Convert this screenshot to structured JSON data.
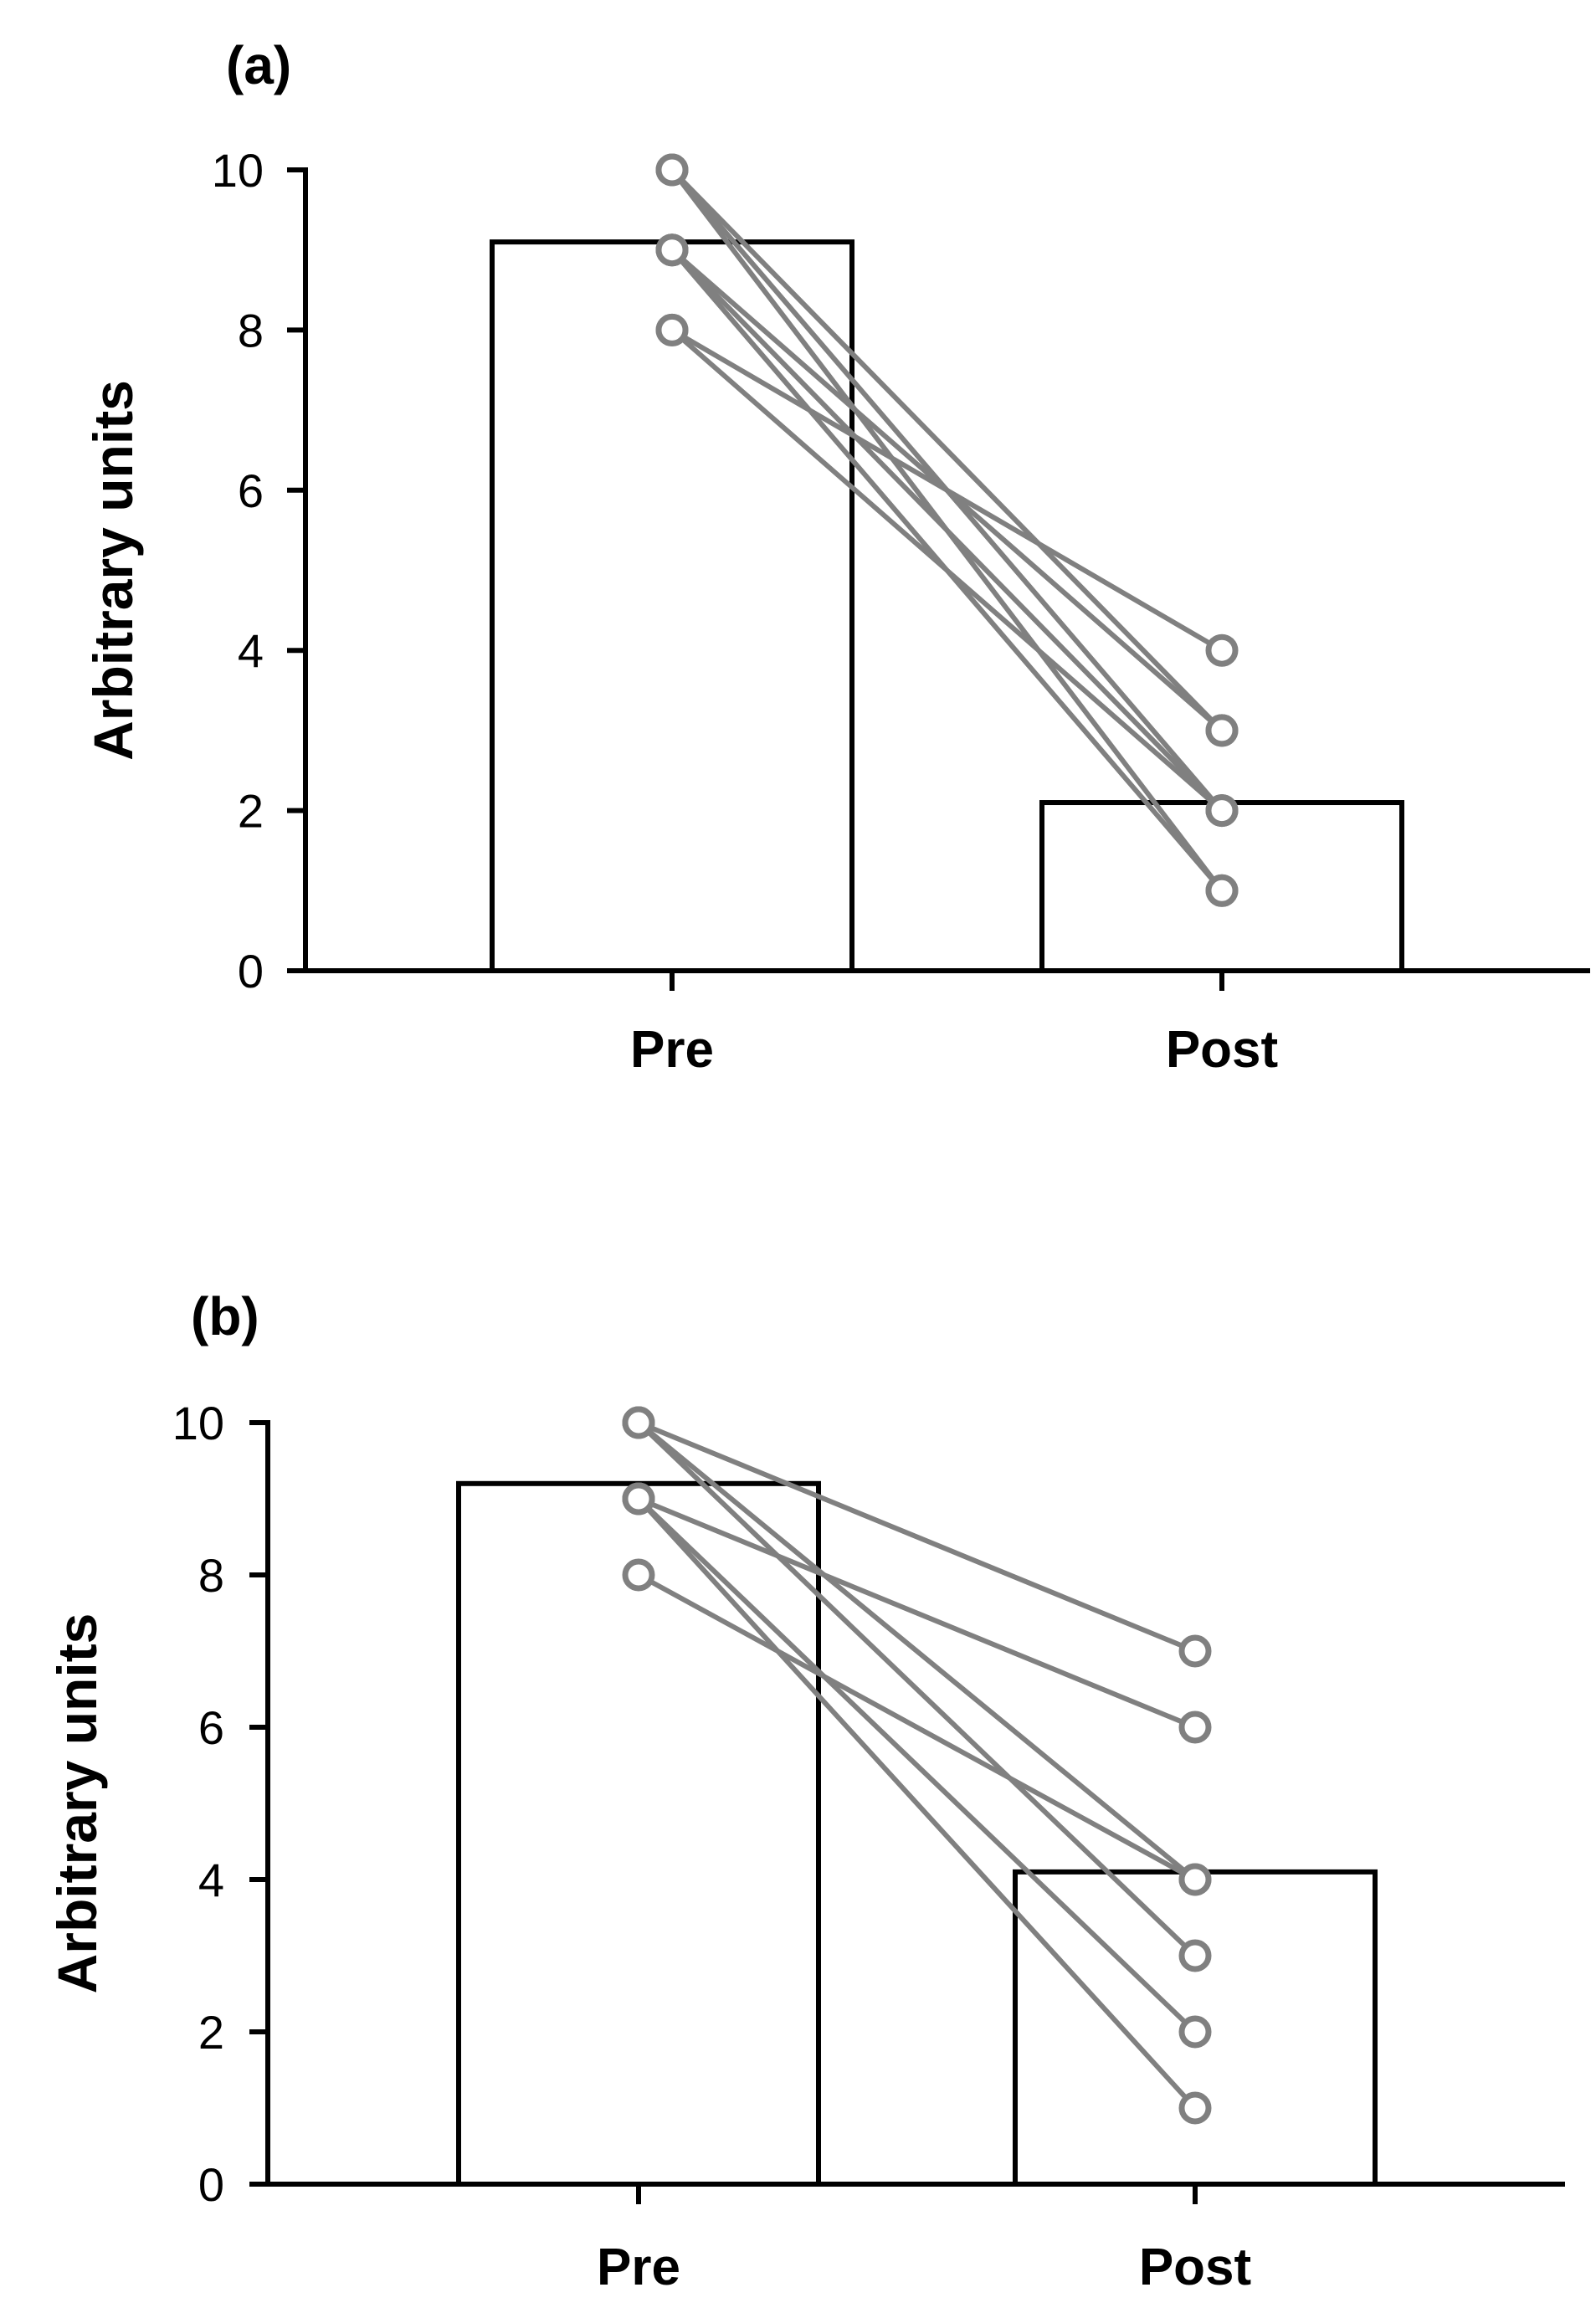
{
  "chart_data": [
    {
      "type": "bar",
      "panel_label": "(a)",
      "categories": [
        "Pre",
        "Post"
      ],
      "values": [
        9.1,
        2.1
      ],
      "ylabel": "Arbitrary units",
      "xlabel": "",
      "ylim": [
        0,
        10
      ],
      "yticks": [
        0,
        2,
        4,
        6,
        8,
        10
      ],
      "paired_lines": [
        {
          "pre": 10,
          "post": 1
        },
        {
          "pre": 10,
          "post": 2
        },
        {
          "pre": 10,
          "post": 3
        },
        {
          "pre": 9,
          "post": 2
        },
        {
          "pre": 9,
          "post": 1
        },
        {
          "pre": 9,
          "post": 3
        },
        {
          "pre": 8,
          "post": 4
        },
        {
          "pre": 8,
          "post": 2
        }
      ],
      "bar_color": "#ffffff",
      "bar_edge_color": "#000000",
      "line_color": "#808080",
      "grid": false
    },
    {
      "type": "bar",
      "panel_label": "(b)",
      "categories": [
        "Pre",
        "Post"
      ],
      "values": [
        9.2,
        4.1
      ],
      "ylabel": "Arbitrary units",
      "xlabel": "",
      "ylim": [
        0,
        10
      ],
      "yticks": [
        0,
        2,
        4,
        6,
        8,
        10
      ],
      "paired_lines": [
        {
          "pre": 10,
          "post": 7
        },
        {
          "pre": 10,
          "post": 4
        },
        {
          "pre": 10,
          "post": 3
        },
        {
          "pre": 9,
          "post": 6
        },
        {
          "pre": 9,
          "post": 2
        },
        {
          "pre": 9,
          "post": 1
        },
        {
          "pre": 8,
          "post": 4
        }
      ],
      "bar_color": "#ffffff",
      "bar_edge_color": "#000000",
      "line_color": "#808080",
      "grid": false
    }
  ]
}
